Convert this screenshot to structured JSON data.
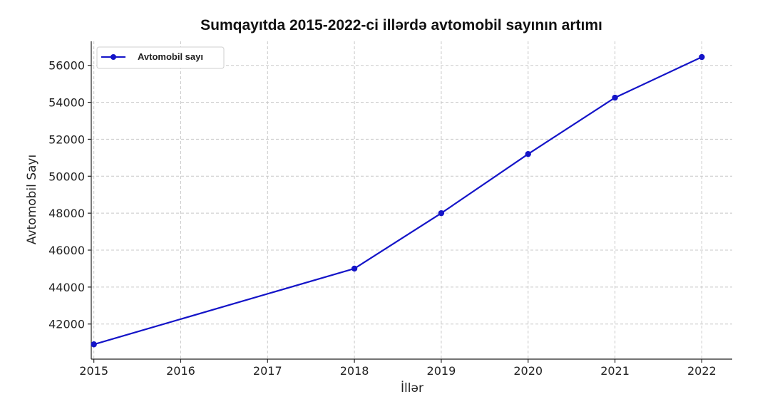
{
  "chart_data": {
    "type": "line",
    "title": "Sumqayıtda 2015-2022-ci illərdə avtomobil sayının artımı",
    "xlabel": "İllər",
    "ylabel": "Avtomobil Sayı",
    "x": [
      2015,
      2018,
      2019,
      2020,
      2021,
      2022
    ],
    "xticks": [
      "2015",
      "2016",
      "2017",
      "2018",
      "2019",
      "2020",
      "2021",
      "2022"
    ],
    "yticks": [
      42000,
      44000,
      46000,
      48000,
      50000,
      52000,
      54000,
      56000
    ],
    "xlim": [
      2014.97,
      2022.35
    ],
    "ylim": [
      40100,
      57300
    ],
    "grid": true,
    "legend_position": "top-left",
    "series": [
      {
        "name": "Avtomobil sayı",
        "color": "#1414c8",
        "values": [
          40900,
          45000,
          48000,
          51200,
          54250,
          56450
        ]
      }
    ]
  }
}
